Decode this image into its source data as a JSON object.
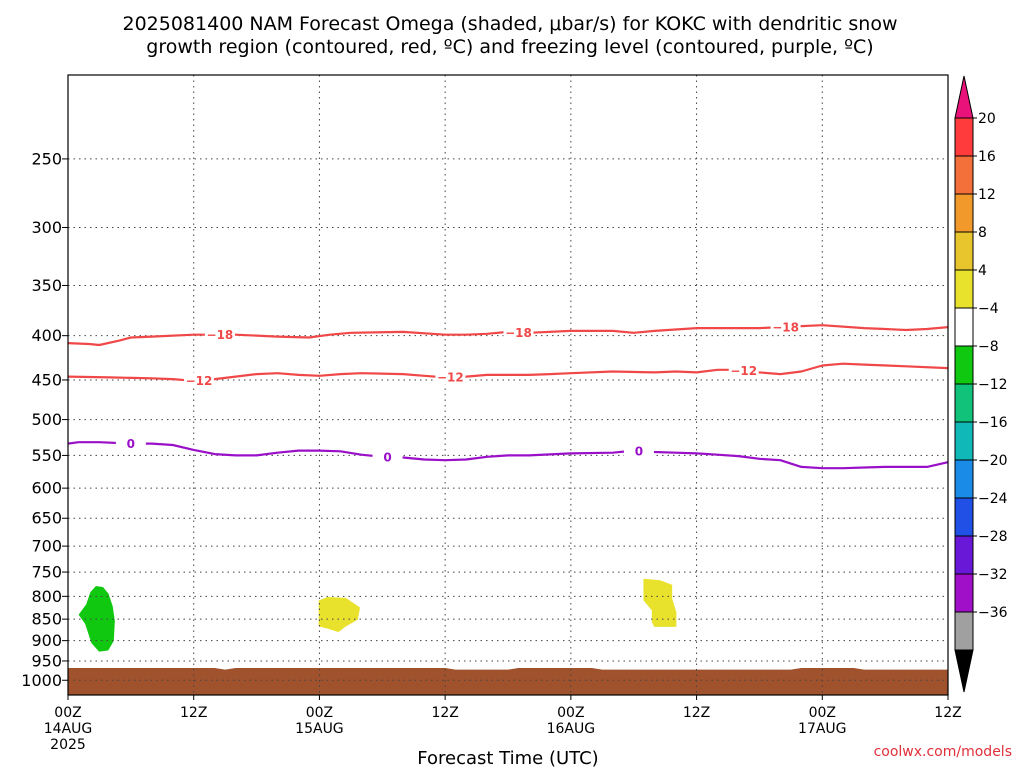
{
  "chart_data": {
    "type": "contour-timeheight",
    "title": {
      "line1": "2025081400 NAM Forecast Omega (shaded, μbar/s) for KOKC with dendritic snow",
      "line2": "growth region (contoured, red, ºC) and freezing level (contoured, purple, ºC)"
    },
    "xlabel": "Forecast Time (UTC)",
    "credit": "coolwx.com/models",
    "x_ticks": [
      {
        "h": 0,
        "l1": "00Z",
        "l2": "14AUG",
        "l3": "2025"
      },
      {
        "h": 12,
        "l1": "12Z",
        "l2": "",
        "l3": ""
      },
      {
        "h": 24,
        "l1": "00Z",
        "l2": "15AUG",
        "l3": ""
      },
      {
        "h": 36,
        "l1": "12Z",
        "l2": "",
        "l3": ""
      },
      {
        "h": 48,
        "l1": "00Z",
        "l2": "16AUG",
        "l3": ""
      },
      {
        "h": 60,
        "l1": "12Z",
        "l2": "",
        "l3": ""
      },
      {
        "h": 72,
        "l1": "00Z",
        "l2": "17AUG",
        "l3": ""
      },
      {
        "h": 84,
        "l1": "12Z",
        "l2": "",
        "l3": ""
      }
    ],
    "xlim": [
      0,
      84
    ],
    "ylim": [
      1040,
      200
    ],
    "y_scale": "log-pressure",
    "y_ticks": [
      250,
      300,
      350,
      400,
      450,
      500,
      550,
      600,
      650,
      700,
      750,
      800,
      850,
      900,
      950,
      1000
    ],
    "grid": true,
    "colorbar": {
      "labels": [
        "20",
        "16",
        "12",
        "8",
        "4",
        "−4",
        "−8",
        "−12",
        "−16",
        "−20",
        "−24",
        "−28",
        "−32",
        "−36"
      ],
      "colors": [
        "#ff3b3b",
        "#f4703a",
        "#f19a2b",
        "#e8c52d",
        "#e8e22d",
        "#ffffff",
        "#10c810",
        "#10c27a",
        "#10b8b8",
        "#1a8ce8",
        "#2050e6",
        "#6a18d8",
        "#a010c8",
        "#a0a0a0"
      ],
      "top_arrow_color": "#e8127a",
      "bottom_arrow_color": "#000000"
    },
    "series": [
      {
        "name": "-18",
        "color": "#f04848",
        "labels_at": [
          14.5,
          43,
          68.5
        ],
        "points": [
          [
            0,
            408
          ],
          [
            2,
            409
          ],
          [
            3,
            410
          ],
          [
            5,
            405
          ],
          [
            6,
            402
          ],
          [
            8,
            401
          ],
          [
            12,
            399
          ],
          [
            16,
            399
          ],
          [
            20,
            401
          ],
          [
            23,
            402
          ],
          [
            25,
            399
          ],
          [
            27,
            397
          ],
          [
            32,
            396
          ],
          [
            36,
            399
          ],
          [
            38,
            399
          ],
          [
            40,
            398
          ],
          [
            42,
            396
          ],
          [
            44,
            397
          ],
          [
            48,
            395
          ],
          [
            52,
            395
          ],
          [
            54,
            397
          ],
          [
            56,
            395
          ],
          [
            60,
            392
          ],
          [
            64,
            392
          ],
          [
            66,
            392
          ],
          [
            68,
            391
          ],
          [
            70,
            390
          ],
          [
            72,
            389
          ],
          [
            76,
            392
          ],
          [
            78,
            393
          ],
          [
            80,
            394
          ],
          [
            82,
            393
          ],
          [
            84,
            391
          ]
        ]
      },
      {
        "name": "-12",
        "color": "#f04848",
        "labels_at": [
          12.5,
          36.5,
          64.5
        ],
        "points": [
          [
            0,
            446
          ],
          [
            4,
            447
          ],
          [
            8,
            448
          ],
          [
            10,
            449
          ],
          [
            12,
            451
          ],
          [
            14,
            449
          ],
          [
            16,
            446
          ],
          [
            18,
            443
          ],
          [
            20,
            442
          ],
          [
            22,
            444
          ],
          [
            24,
            445
          ],
          [
            26,
            443
          ],
          [
            28,
            442
          ],
          [
            32,
            443
          ],
          [
            34,
            445
          ],
          [
            36,
            447
          ],
          [
            38,
            446
          ],
          [
            40,
            444
          ],
          [
            44,
            444
          ],
          [
            46,
            443
          ],
          [
            48,
            442
          ],
          [
            52,
            440
          ],
          [
            56,
            441
          ],
          [
            58,
            440
          ],
          [
            60,
            441
          ],
          [
            62,
            438
          ],
          [
            64,
            438
          ],
          [
            66,
            441
          ],
          [
            68,
            443
          ],
          [
            70,
            440
          ],
          [
            72,
            433
          ],
          [
            74,
            431
          ],
          [
            76,
            432
          ],
          [
            80,
            434
          ],
          [
            84,
            436
          ]
        ]
      },
      {
        "name": "0",
        "color": "#9a10c8",
        "labels_at": [
          6,
          30.5,
          54.5
        ],
        "points": [
          [
            0,
            533
          ],
          [
            1,
            531
          ],
          [
            3,
            531
          ],
          [
            6,
            533
          ],
          [
            8,
            533
          ],
          [
            10,
            535
          ],
          [
            12,
            542
          ],
          [
            14,
            548
          ],
          [
            16,
            550
          ],
          [
            18,
            550
          ],
          [
            20,
            546
          ],
          [
            22,
            543
          ],
          [
            24,
            543
          ],
          [
            26,
            544
          ],
          [
            28,
            549
          ],
          [
            30,
            552
          ],
          [
            32,
            553
          ],
          [
            34,
            556
          ],
          [
            36,
            557
          ],
          [
            38,
            556
          ],
          [
            40,
            552
          ],
          [
            42,
            550
          ],
          [
            44,
            550
          ],
          [
            48,
            547
          ],
          [
            52,
            546
          ],
          [
            54,
            543
          ],
          [
            56,
            545
          ],
          [
            58,
            546
          ],
          [
            60,
            547
          ],
          [
            62,
            549
          ],
          [
            64,
            551
          ],
          [
            66,
            555
          ],
          [
            68,
            557
          ],
          [
            70,
            567
          ],
          [
            72,
            569
          ],
          [
            74,
            569
          ],
          [
            76,
            568
          ],
          [
            78,
            567
          ],
          [
            80,
            567
          ],
          [
            82,
            567
          ],
          [
            84,
            560
          ]
        ]
      }
    ],
    "omega_regions": [
      {
        "color": "#10c810",
        "points": [
          [
            1.8,
            818
          ],
          [
            2.2,
            792
          ],
          [
            2.7,
            780
          ],
          [
            3.3,
            782
          ],
          [
            3.8,
            795
          ],
          [
            4.2,
            822
          ],
          [
            4.4,
            855
          ],
          [
            4.3,
            900
          ],
          [
            3.8,
            922
          ],
          [
            3.0,
            925
          ],
          [
            2.3,
            905
          ],
          [
            1.7,
            860
          ],
          [
            1.1,
            840
          ]
        ]
      },
      {
        "color": "#e8e22d",
        "points": [
          [
            24,
            810
          ],
          [
            24.8,
            803
          ],
          [
            26.5,
            805
          ],
          [
            27.8,
            825
          ],
          [
            27.6,
            850
          ],
          [
            26.5,
            865
          ],
          [
            25.8,
            878
          ],
          [
            24.8,
            870
          ],
          [
            24.0,
            865
          ]
        ]
      },
      {
        "color": "#e8e22d",
        "points": [
          [
            55.0,
            765
          ],
          [
            56.5,
            768
          ],
          [
            57.6,
            777
          ],
          [
            57.6,
            805
          ],
          [
            58.0,
            835
          ],
          [
            58.0,
            866
          ],
          [
            56.0,
            866
          ],
          [
            55.8,
            855
          ],
          [
            55.8,
            830
          ],
          [
            55.0,
            808
          ]
        ]
      }
    ],
    "terrain": {
      "color": "#a0522d",
      "points": [
        [
          0,
          968
        ],
        [
          14,
          968
        ],
        [
          15,
          972
        ],
        [
          16,
          968
        ],
        [
          36,
          968
        ],
        [
          37,
          972
        ],
        [
          42,
          972
        ],
        [
          43,
          968
        ],
        [
          50,
          968
        ],
        [
          51,
          972
        ],
        [
          69,
          972
        ],
        [
          70,
          968
        ],
        [
          75,
          968
        ],
        [
          76,
          972
        ],
        [
          84,
          972
        ]
      ]
    }
  }
}
